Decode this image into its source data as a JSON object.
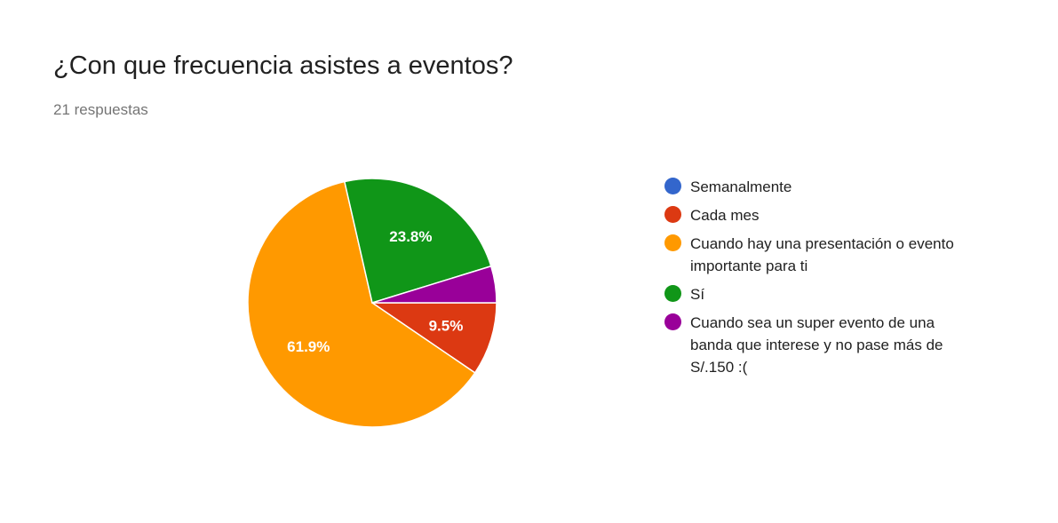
{
  "header": {
    "title": "¿Con que frecuencia asistes a eventos?",
    "subtitle": "21 respuestas"
  },
  "chart_data": {
    "type": "pie",
    "title": "¿Con que frecuencia asistes a eventos?",
    "subtitle": "21 respuestas",
    "legend_position": "right",
    "categories": [
      "Semanalmente",
      "Cada mes",
      "Cuando hay una presentación o evento importante para ti",
      "Sí",
      "Cuando sea un super evento de una banda que interese y no pase más de S/.150 :("
    ],
    "values": [
      0,
      2,
      13,
      5,
      1
    ],
    "percent_labels": [
      "",
      "9.5%",
      "61.9%",
      "23.8%",
      ""
    ],
    "colors": [
      "#3366cc",
      "#dc3912",
      "#ff9900",
      "#109618",
      "#990099"
    ],
    "start_angle_deg": 90,
    "direction": "clockwise"
  }
}
